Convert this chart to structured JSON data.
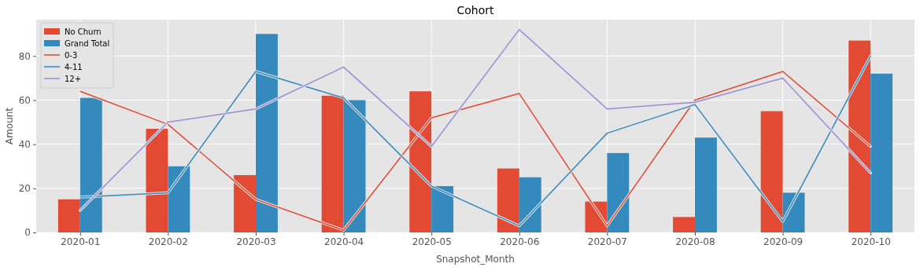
{
  "chart_data": {
    "type": "bar",
    "title": "Cohort",
    "xlabel": "Snapshot_Month",
    "ylabel": "Amount",
    "categories": [
      "2020-01",
      "2020-02",
      "2020-03",
      "2020-04",
      "2020-05",
      "2020-06",
      "2020-07",
      "2020-08",
      "2020-09",
      "2020-10"
    ],
    "series": [
      {
        "name": "No Churn",
        "color": "#e24a33",
        "values": [
          15,
          47,
          26,
          62,
          64,
          29,
          14,
          7,
          55,
          87
        ]
      },
      {
        "name": "Grand Total",
        "color": "#348abd",
        "values": [
          61,
          30,
          90,
          60,
          21,
          25,
          36,
          43,
          18,
          72
        ]
      },
      {
        "name": "0-3",
        "type": "line",
        "color": "#e24a33",
        "values": [
          64,
          49,
          15,
          1,
          52,
          63,
          3,
          60,
          73,
          39
        ]
      },
      {
        "name": "4-11",
        "type": "line",
        "color": "#348abd",
        "values": [
          16,
          18,
          73,
          61,
          21,
          3,
          45,
          58,
          5,
          80
        ]
      },
      {
        "name": "12+",
        "type": "line",
        "color": "#988ed5",
        "values": [
          10,
          50,
          56,
          75,
          39,
          92,
          56,
          59,
          70,
          27
        ]
      }
    ],
    "ylim": [
      0,
      96.5
    ],
    "yticks": [
      0,
      20,
      40,
      60,
      80
    ],
    "grid": true,
    "legend": "top left",
    "line_style": "solid"
  }
}
